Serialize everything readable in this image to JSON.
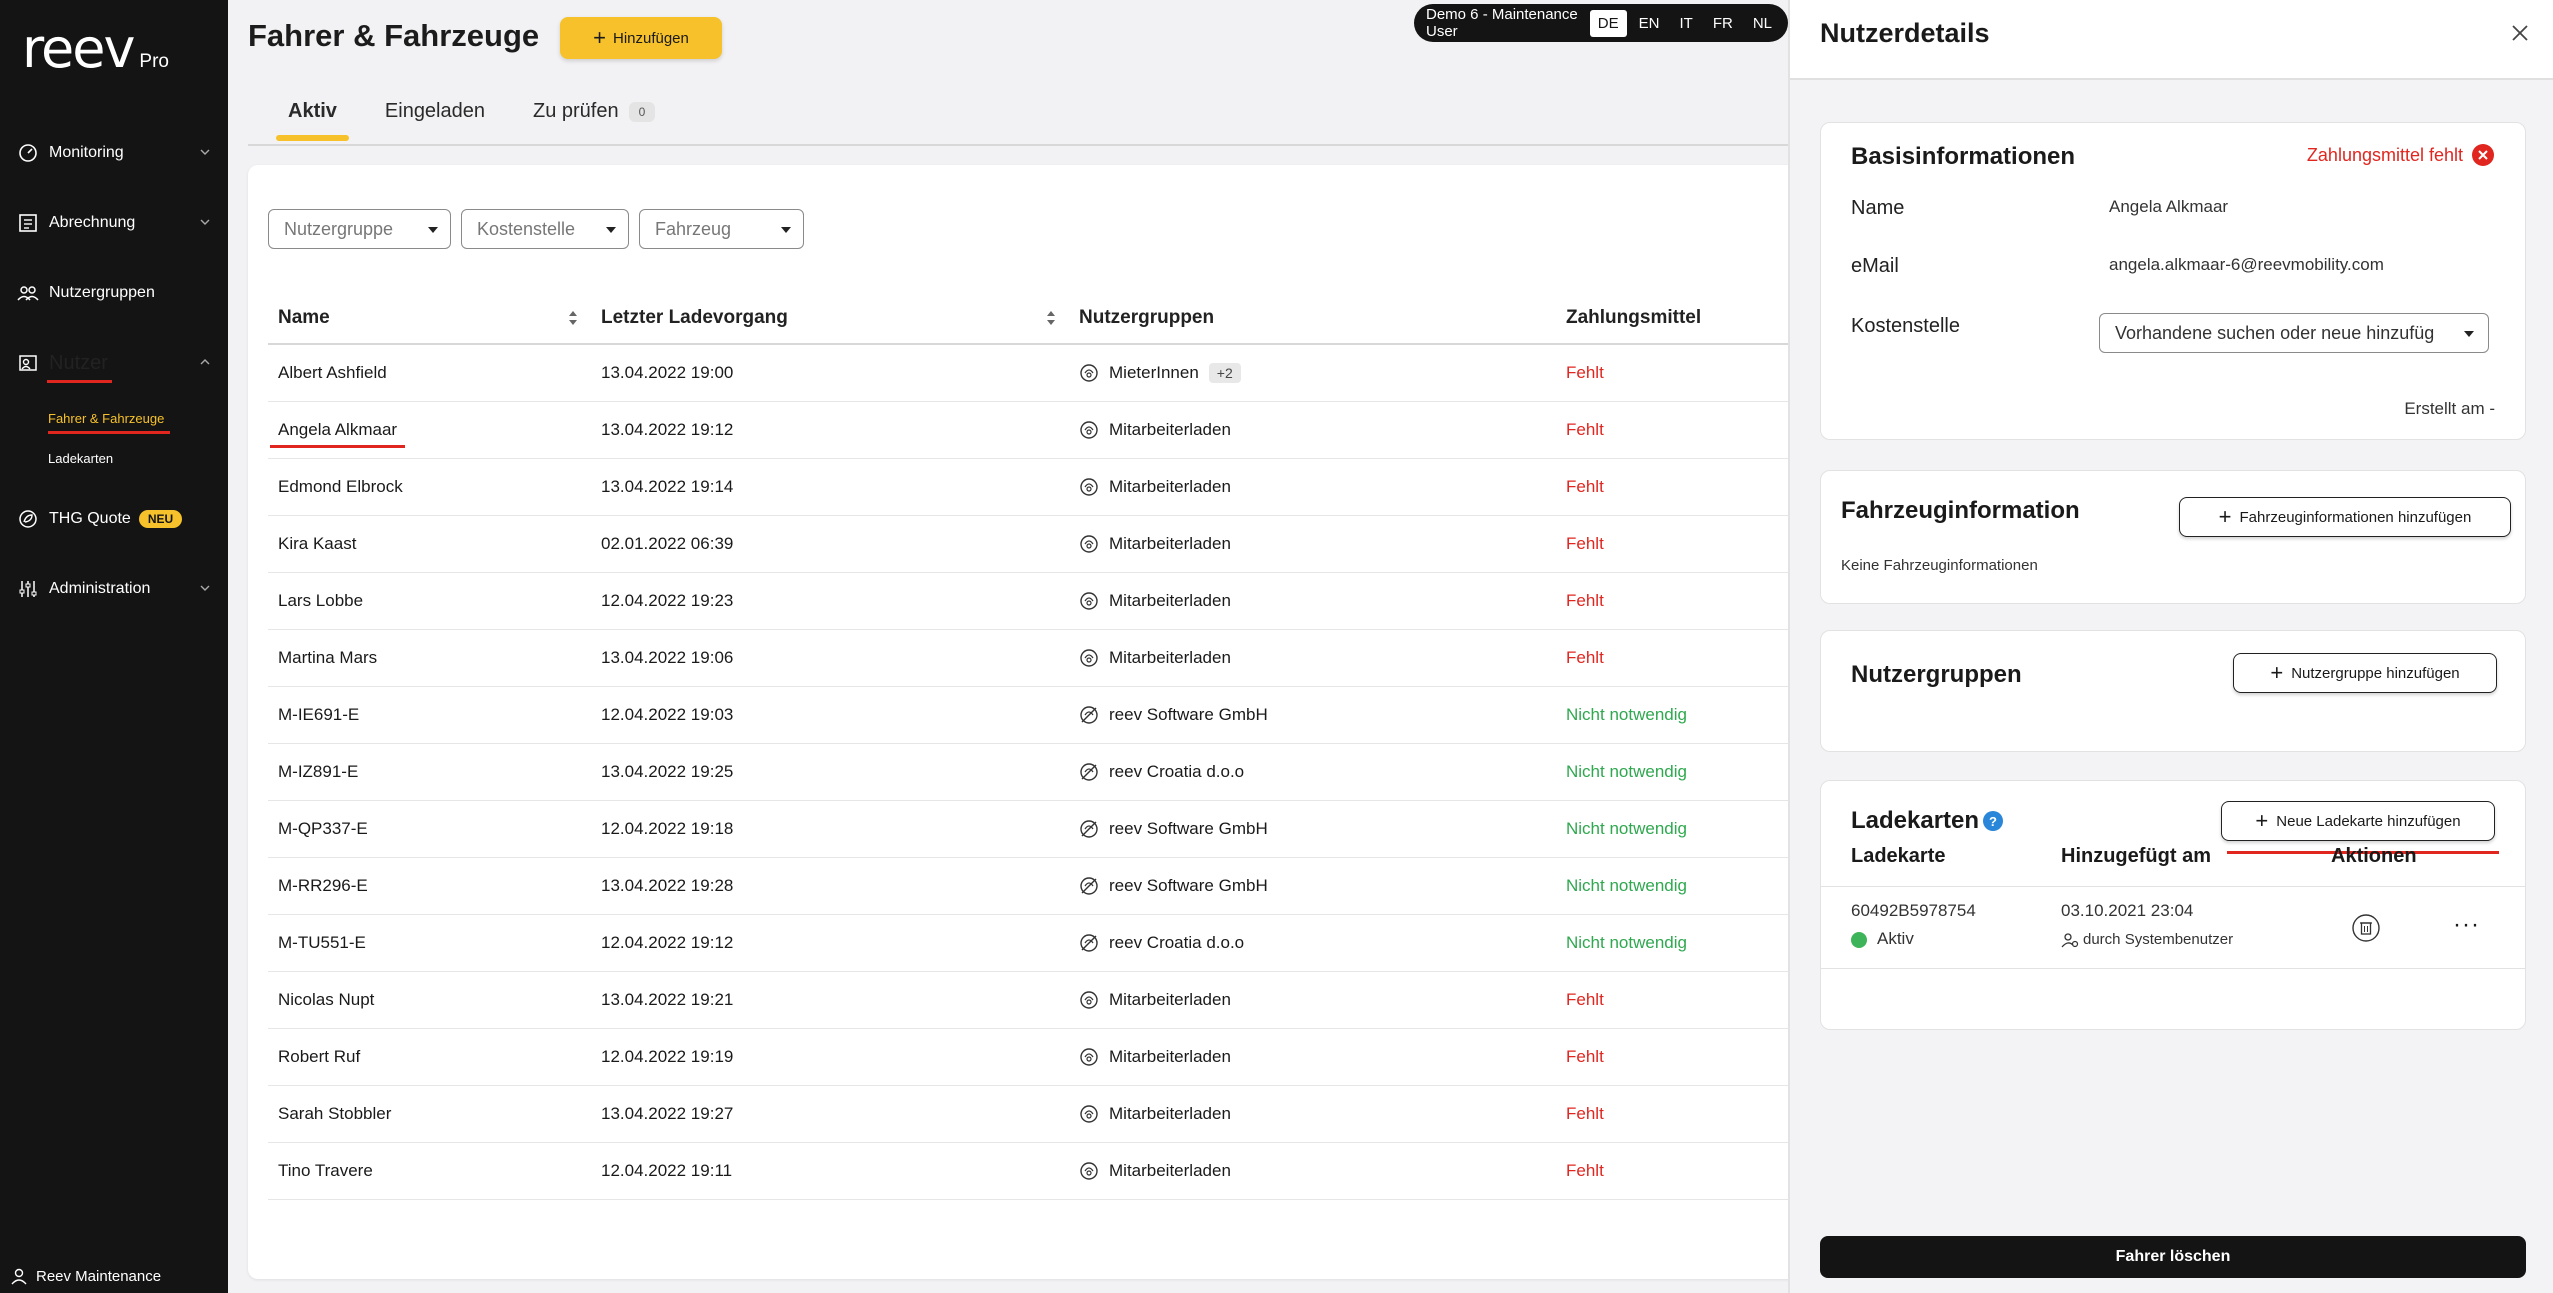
{
  "app": {
    "logo": "reev",
    "logo_suffix": "Pro"
  },
  "sidebar": {
    "items": [
      {
        "label": "Monitoring",
        "icon": "gauge-icon"
      },
      {
        "label": "Abrechnung",
        "icon": "invoice-icon"
      },
      {
        "label": "Nutzergruppen",
        "icon": "group-icon"
      },
      {
        "label": "Nutzer",
        "icon": "user-icon"
      },
      {
        "label": "THG Quote",
        "icon": "leaf-icon",
        "badge": "NEU"
      },
      {
        "label": "Administration",
        "icon": "sliders-icon"
      }
    ],
    "sub_items": [
      "Fahrer & Fahrzeuge",
      "Ladekarten"
    ],
    "footer_user": "Reev Maintenance"
  },
  "header": {
    "title": "Fahrer & Fahrzeuge",
    "add_label": "Hinzufügen",
    "tabs": [
      "Aktiv",
      "Eingeladen",
      "Zu prüfen"
    ],
    "tab_count": "0"
  },
  "demo_bar": {
    "user": "Demo 6 - Maintenance User",
    "languages": [
      "DE",
      "EN",
      "IT",
      "FR",
      "NL"
    ],
    "active_language": "DE"
  },
  "filters": {
    "placeholders": [
      "Nutzergruppe",
      "Kostenstelle",
      "Fahrzeug"
    ]
  },
  "table": {
    "columns": [
      "Name",
      "Letzter Ladevorgang",
      "Nutzergruppen",
      "Zahlungsmittel"
    ],
    "rows": [
      {
        "name": "Albert Ashfield",
        "date": "13.04.2022 19:00",
        "group": "MieterInnen",
        "extra": "+2",
        "payment": "Fehlt"
      },
      {
        "name": "Angela Alkmaar",
        "date": "13.04.2022 19:12",
        "group": "Mitarbeiterladen",
        "payment": "Fehlt"
      },
      {
        "name": "Edmond Elbrock",
        "date": "13.04.2022 19:14",
        "group": "Mitarbeiterladen",
        "payment": "Fehlt"
      },
      {
        "name": "Kira Kaast",
        "date": "02.01.2022 06:39",
        "group": "Mitarbeiterladen",
        "payment": "Fehlt"
      },
      {
        "name": "Lars Lobbe",
        "date": "12.04.2022 19:23",
        "group": "Mitarbeiterladen",
        "payment": "Fehlt"
      },
      {
        "name": "Martina Mars",
        "date": "13.04.2022 19:06",
        "group": "Mitarbeiterladen",
        "payment": "Fehlt"
      },
      {
        "name": "M-IE691-E",
        "date": "12.04.2022 19:03",
        "group": "reev Software GmbH",
        "payment": "Nicht notwendig"
      },
      {
        "name": "M-IZ891-E",
        "date": "13.04.2022 19:25",
        "group": "reev Croatia d.o.o",
        "payment": "Nicht notwendig"
      },
      {
        "name": "M-QP337-E",
        "date": "12.04.2022 19:18",
        "group": "reev Software GmbH",
        "payment": "Nicht notwendig"
      },
      {
        "name": "M-RR296-E",
        "date": "13.04.2022 19:28",
        "group": "reev Software GmbH",
        "payment": "Nicht notwendig"
      },
      {
        "name": "M-TU551-E",
        "date": "12.04.2022 19:12",
        "group": "reev Croatia d.o.o",
        "payment": "Nicht notwendig"
      },
      {
        "name": "Nicolas Nupt",
        "date": "13.04.2022 19:21",
        "group": "Mitarbeiterladen",
        "payment": "Fehlt"
      },
      {
        "name": "Robert Ruf",
        "date": "12.04.2022 19:19",
        "group": "Mitarbeiterladen",
        "payment": "Fehlt"
      },
      {
        "name": "Sarah Stobbler",
        "date": "13.04.2022 19:27",
        "group": "Mitarbeiterladen",
        "payment": "Fehlt"
      },
      {
        "name": "Tino Travere",
        "date": "12.04.2022 19:11",
        "group": "Mitarbeiterladen",
        "payment": "Fehlt"
      }
    ]
  },
  "panel": {
    "title": "Nutzerdetails",
    "basis": {
      "title": "Basisinformationen",
      "payment_missing": "Zahlungsmittel fehlt",
      "name_label": "Name",
      "name_value": "Angela Alkmaar",
      "email_label": "eMail",
      "email_value": "angela.alkmaar-6@reevmobility.com",
      "cost_label": "Kostenstelle",
      "cost_placeholder": "Vorhandene suchen oder neue hinzufüg",
      "created": "Erstellt am -"
    },
    "vehicle": {
      "title": "Fahrzeuginformation",
      "add_label": "Fahrzeuginformationen hinzufügen",
      "empty": "Keine Fahrzeuginformationen"
    },
    "groups": {
      "title": "Nutzergruppen",
      "add_label": "Nutzergruppe hinzufügen"
    },
    "cards": {
      "title": "Ladekarten",
      "help": "?",
      "add_label": "Neue Ladekarte hinzufügen",
      "columns": [
        "Ladekarte",
        "Hinzugefügt am",
        "Aktionen"
      ],
      "row": {
        "id": "60492B5978754",
        "status": "Aktiv",
        "added": "03.10.2021 23:04",
        "by": "durch Systembenutzer"
      }
    },
    "delete_label": "Fahrer löschen"
  },
  "colors": {
    "accent": "#f6c12a",
    "error": "#e0261f",
    "success": "#2fa84f",
    "sidebar": "#141414"
  }
}
